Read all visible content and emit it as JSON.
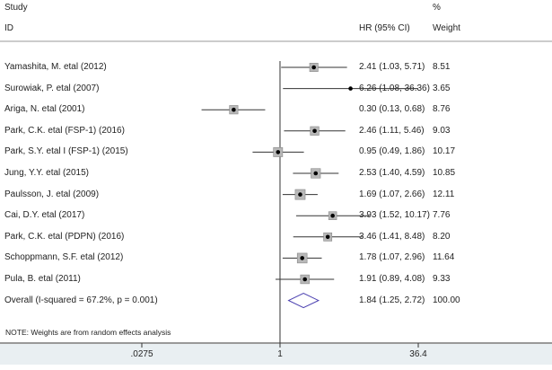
{
  "chart_data": {
    "type": "forest",
    "headers": {
      "study": "Study",
      "id": "ID",
      "hr": "HR (95% CI)",
      "pct": "%",
      "weight": "Weight"
    },
    "xscale": "log",
    "xlim": [
      0.0275,
      36.4
    ],
    "xticks": [
      ".0275",
      "1",
      "36.4"
    ],
    "xtick_values": [
      0.0275,
      1,
      36.4
    ],
    "reference_line": 1,
    "studies": [
      {
        "label": "Yamashita, M. etal (2012)",
        "hr": 2.41,
        "lo": 1.03,
        "hi": 5.71,
        "ci_text": "2.41 (1.03, 5.71)",
        "weight": "8.51"
      },
      {
        "label": "Surowiak, P. etal (2007)",
        "hr": 6.26,
        "lo": 1.08,
        "hi": 36.36,
        "ci_text": "6.26 (1.08, 36.36)",
        "weight": "3.65"
      },
      {
        "label": "Ariga, N. etal (2001)",
        "hr": 0.3,
        "lo": 0.13,
        "hi": 0.68,
        "ci_text": "0.30 (0.13, 0.68)",
        "weight": "8.76"
      },
      {
        "label": "Park, C.K. etal (FSP-1) (2016)",
        "hr": 2.46,
        "lo": 1.11,
        "hi": 5.46,
        "ci_text": "2.46 (1.11, 5.46)",
        "weight": "9.03"
      },
      {
        "label": "Park, S.Y. etal I (FSP-1) (2015)",
        "hr": 0.95,
        "lo": 0.49,
        "hi": 1.86,
        "ci_text": "0.95 (0.49, 1.86)",
        "weight": "10.17"
      },
      {
        "label": "Jung, Y.Y. etal (2015)",
        "hr": 2.53,
        "lo": 1.4,
        "hi": 4.59,
        "ci_text": "2.53 (1.40, 4.59)",
        "weight": "10.85"
      },
      {
        "label": "Paulsson, J. etal (2009)",
        "hr": 1.69,
        "lo": 1.07,
        "hi": 2.66,
        "ci_text": "1.69 (1.07, 2.66)",
        "weight": "12.11"
      },
      {
        "label": "Cai, D.Y. etal (2017)",
        "hr": 3.93,
        "lo": 1.52,
        "hi": 10.17,
        "ci_text": "3.93 (1.52, 10.17)",
        "weight": "7.76"
      },
      {
        "label": "Park, C.K. etal (PDPN) (2016)",
        "hr": 3.46,
        "lo": 1.41,
        "hi": 8.48,
        "ci_text": "3.46 (1.41, 8.48)",
        "weight": "8.20"
      },
      {
        "label": "Schoppmann, S.F. etal (2012)",
        "hr": 1.78,
        "lo": 1.07,
        "hi": 2.96,
        "ci_text": "1.78 (1.07, 2.96)",
        "weight": "11.64"
      },
      {
        "label": "Pula, B. etal (2011)",
        "hr": 1.91,
        "lo": 0.89,
        "hi": 4.08,
        "ci_text": "1.91 (0.89, 4.08)",
        "weight": "9.33"
      }
    ],
    "overall": {
      "label": "Overall  (I-squared = 67.2%, p = 0.001)",
      "hr": 1.84,
      "lo": 1.25,
      "hi": 2.72,
      "ci_text": "1.84 (1.25, 2.72)",
      "weight": "100.00"
    },
    "note": "NOTE: Weights are from random effects analysis",
    "colors": {
      "box": "#b8b8b8",
      "diamond": "#4a3fb0",
      "line": "#333333",
      "axis_strip": "#e9eff2"
    }
  }
}
